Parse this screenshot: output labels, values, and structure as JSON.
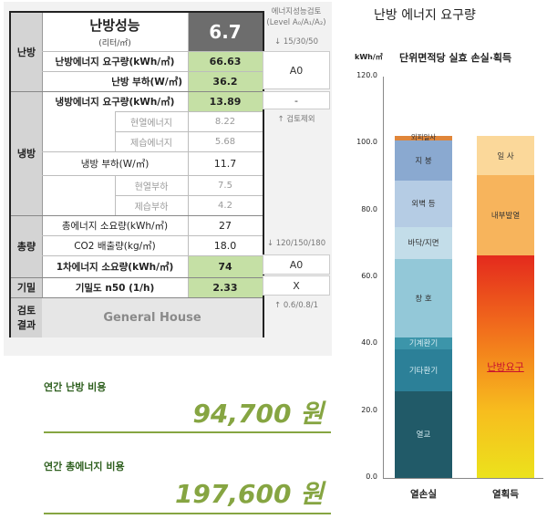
{
  "table": {
    "heating_section": "난방",
    "perf_title": "난방성능",
    "perf_unit": "(리터/㎡)",
    "perf_value": "6.7",
    "demand_label": "난방에너지 요구량(kWh/㎡)",
    "demand_value": "66.63",
    "load_label": "난방 부하(W/㎡)",
    "load_value": "36.2",
    "cooling_section": "냉방",
    "cool_demand_label": "냉방에너지 요구량(kWh/㎡)",
    "cool_demand_value": "13.89",
    "sensible_energy_label": "현열에너지",
    "sensible_energy_value": "8.22",
    "latent_energy_label": "제습에너지",
    "latent_energy_value": "5.68",
    "cool_load_label": "냉방 부하(W/㎡)",
    "cool_load_value": "11.7",
    "sensible_load_label": "현열부하",
    "sensible_load_value": "7.5",
    "latent_load_label": "제습부하",
    "latent_load_value": "4.2",
    "total_section": "총량",
    "total_energy_label": "총에너지 소요량(kWh/㎡)",
    "total_energy_value": "27",
    "co2_label": "CO2 배출량(kg/㎡)",
    "co2_value": "18.0",
    "primary_label": "1차에너지 소요량(kWh/㎡)",
    "primary_value": "74",
    "airtight_section": "기밀",
    "airtight_label": "기밀도 n50 (1/h)",
    "airtight_value": "2.33",
    "result_section_1": "검토",
    "result_section_2": "결과",
    "result_value": "General House"
  },
  "review": {
    "header_1": "에너지성능검토",
    "header_2": "(Level A₀/A₁/A₂)",
    "heating_threshold": "↓ 15/30/50",
    "heating_result": "A0",
    "cooling_result": "-",
    "cooling_note": "↑ 검토제외",
    "primary_threshold": "↓ 120/150/180",
    "primary_result": "A0",
    "airtight_result": "X",
    "airtight_threshold": "↑ 0.6/0.8/1"
  },
  "costs": {
    "heating_label": "연간 난방 비용",
    "heating_value": "94,700 원",
    "total_label": "연간 총에너지 비용",
    "total_value": "197,600 원"
  },
  "chart_data": {
    "type": "bar",
    "stacked": true,
    "title": "난방 에너지 요구량",
    "subtitle": "단위면적당 실효 손실·획득",
    "ylabel": "kWh/㎡",
    "ylim": [
      0,
      120
    ],
    "yticks": [
      "0.0",
      "20.0",
      "40.0",
      "60.0",
      "80.0",
      "100.0",
      "120.0"
    ],
    "categories": [
      "열손실",
      "열획득"
    ],
    "loss_segments": [
      {
        "name": "열교",
        "from": 0,
        "to": 26,
        "color": "#215a68"
      },
      {
        "name": "기타환기",
        "from": 26,
        "to": 38.5,
        "color": "#2c8098"
      },
      {
        "name": "기계환기",
        "from": 38.5,
        "to": 42,
        "color": "#3c95aa"
      },
      {
        "name": "창 호",
        "from": 42,
        "to": 65.5,
        "color": "#93c8d8"
      },
      {
        "name": "바닥/지면",
        "from": 65.5,
        "to": 75,
        "color": "#c3dde9"
      },
      {
        "name": "외벽 등",
        "from": 75,
        "to": 89,
        "color": "#b5cce4"
      },
      {
        "name": "지 붕",
        "from": 89,
        "to": 101,
        "color": "#8aa9d0"
      },
      {
        "name": "외피일사",
        "from": 101,
        "to": 102.3,
        "color": "#e0863a"
      }
    ],
    "gain_segments": [
      {
        "name": "난방요구",
        "from": 0,
        "to": 66.6,
        "color": "gradient"
      },
      {
        "name": "내부발열",
        "from": 66.6,
        "to": 90.5,
        "color": "#f7b45c"
      },
      {
        "name": "일 사",
        "from": 90.5,
        "to": 102.3,
        "color": "#fbd89a"
      }
    ]
  }
}
